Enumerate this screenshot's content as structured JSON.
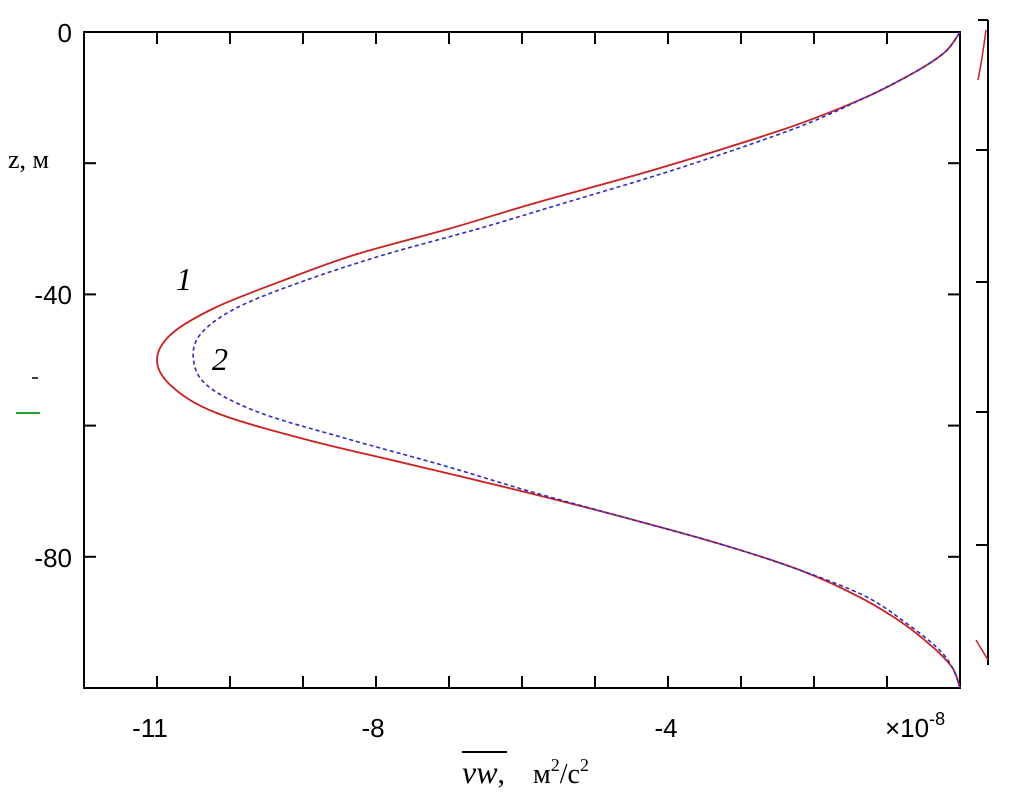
{
  "chart_data": {
    "type": "line",
    "title": "",
    "xlabel_var": "vw",
    "xlabel_sep": ",",
    "xlabel_unit": "м",
    "xlabel_unit_sup1": "2",
    "xlabel_unit_mid": "/с",
    "xlabel_unit_sup2": "2",
    "ylabel": "z, м",
    "x_scale_base": "×10",
    "x_scale_exp": "-8",
    "xlim": [
      -12,
      0
    ],
    "ylim": [
      -100,
      0
    ],
    "x_ticks": [
      -11,
      -8,
      -4
    ],
    "y_ticks": [
      0,
      -40,
      -80
    ],
    "series": [
      {
        "name": "1",
        "color": "#cc2020",
        "style": "solid",
        "points": [
          [
            0,
            0
          ],
          [
            -0.2,
            -3
          ],
          [
            -0.6,
            -6
          ],
          [
            -1.3,
            -10
          ],
          [
            -2.2,
            -14
          ],
          [
            -3.3,
            -18
          ],
          [
            -4.5,
            -22
          ],
          [
            -5.8,
            -26
          ],
          [
            -7.0,
            -30
          ],
          [
            -8.3,
            -34
          ],
          [
            -9.3,
            -38
          ],
          [
            -10.2,
            -42
          ],
          [
            -10.8,
            -46
          ],
          [
            -11.0,
            -50
          ],
          [
            -10.8,
            -54
          ],
          [
            -10.2,
            -58
          ],
          [
            -9.0,
            -62
          ],
          [
            -7.5,
            -66
          ],
          [
            -6.0,
            -70
          ],
          [
            -4.6,
            -74
          ],
          [
            -3.3,
            -78
          ],
          [
            -2.2,
            -82
          ],
          [
            -1.4,
            -86
          ],
          [
            -0.8,
            -90
          ],
          [
            -0.35,
            -94
          ],
          [
            -0.1,
            -97
          ],
          [
            0,
            -100
          ]
        ]
      },
      {
        "name": "2",
        "color": "#2a2acc",
        "style": "dashed",
        "points": [
          [
            0,
            0
          ],
          [
            -0.2,
            -3
          ],
          [
            -0.6,
            -6
          ],
          [
            -1.3,
            -10
          ],
          [
            -2.1,
            -14
          ],
          [
            -3.1,
            -18
          ],
          [
            -4.2,
            -22
          ],
          [
            -5.4,
            -26
          ],
          [
            -6.6,
            -30
          ],
          [
            -7.9,
            -34
          ],
          [
            -9.0,
            -38
          ],
          [
            -9.9,
            -42
          ],
          [
            -10.4,
            -46
          ],
          [
            -10.5,
            -50
          ],
          [
            -10.3,
            -54
          ],
          [
            -9.6,
            -58
          ],
          [
            -8.4,
            -62
          ],
          [
            -7.1,
            -66
          ],
          [
            -5.9,
            -70
          ],
          [
            -4.6,
            -74
          ],
          [
            -3.3,
            -78
          ],
          [
            -2.2,
            -82
          ],
          [
            -1.3,
            -86
          ],
          [
            -0.75,
            -90
          ],
          [
            -0.3,
            -94
          ],
          [
            -0.1,
            -97
          ],
          [
            0,
            -100
          ]
        ]
      }
    ],
    "grid": false,
    "legend": "inline labels"
  }
}
